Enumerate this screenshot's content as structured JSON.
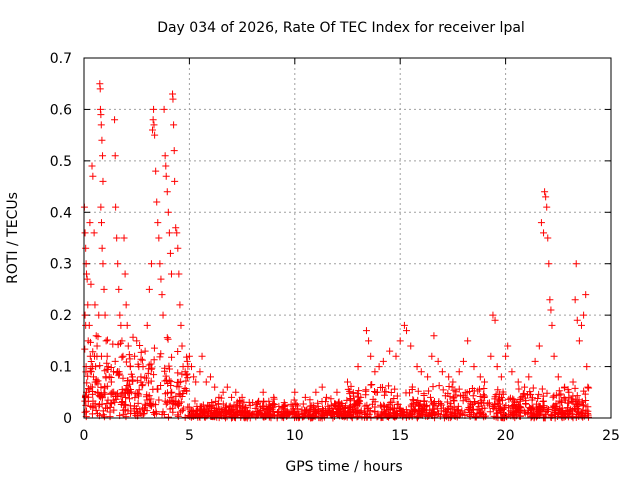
{
  "chart_data": {
    "type": "scatter",
    "title": "Day 034 of 2026, Rate Of TEC Index for receiver lpal",
    "xlabel": "GPS time / hours",
    "ylabel": "ROTI / TECUs",
    "xlim": [
      0,
      25
    ],
    "ylim": [
      0,
      0.7
    ],
    "xticks": [
      0,
      5,
      10,
      15,
      20,
      25
    ],
    "yticks": [
      0,
      0.1,
      0.2,
      0.3,
      0.4,
      0.5,
      0.6,
      0.7
    ],
    "xtick_labels": [
      "0",
      "5",
      "10",
      "15",
      "20",
      "25"
    ],
    "ytick_labels": [
      "0",
      "0.1",
      "0.2",
      "0.3",
      "0.4",
      "0.5",
      "0.6",
      "0.7"
    ],
    "grid": true,
    "marker": "+",
    "color": "#ff0000",
    "series": [
      {
        "name": "ROTI",
        "points": [
          [
            0.02,
            0.41
          ],
          [
            0.05,
            0.36
          ],
          [
            0.08,
            0.33
          ],
          [
            0.1,
            0.3
          ],
          [
            0.12,
            0.28
          ],
          [
            0.15,
            0.27
          ],
          [
            0.05,
            0.2
          ],
          [
            0.08,
            0.18
          ],
          [
            0.1,
            0.1
          ],
          [
            0.12,
            0.05
          ],
          [
            0.18,
            0.22
          ],
          [
            0.25,
            0.18
          ],
          [
            0.3,
            0.12
          ],
          [
            0.35,
            0.09
          ],
          [
            0.4,
            0.06
          ],
          [
            0.45,
            0.08
          ],
          [
            0.5,
            0.12
          ],
          [
            0.55,
            0.1
          ],
          [
            0.6,
            0.07
          ],
          [
            0.65,
            0.05
          ],
          [
            0.2,
            0.15
          ],
          [
            0.28,
            0.38
          ],
          [
            0.33,
            0.26
          ],
          [
            0.38,
            0.49
          ],
          [
            0.42,
            0.47
          ],
          [
            0.48,
            0.36
          ],
          [
            0.52,
            0.22
          ],
          [
            0.58,
            0.16
          ],
          [
            0.62,
            0.14
          ],
          [
            0.7,
            0.2
          ],
          [
            0.75,
            0.65
          ],
          [
            0.77,
            0.64
          ],
          [
            0.78,
            0.6
          ],
          [
            0.8,
            0.59
          ],
          [
            0.82,
            0.57
          ],
          [
            0.85,
            0.54
          ],
          [
            0.88,
            0.51
          ],
          [
            0.9,
            0.46
          ],
          [
            0.8,
            0.41
          ],
          [
            0.83,
            0.38
          ],
          [
            0.86,
            0.33
          ],
          [
            0.9,
            0.3
          ],
          [
            0.95,
            0.25
          ],
          [
            1.0,
            0.2
          ],
          [
            1.05,
            0.15
          ],
          [
            1.1,
            0.12
          ],
          [
            1.15,
            0.1
          ],
          [
            1.2,
            0.08
          ],
          [
            1.3,
            0.07
          ],
          [
            1.4,
            0.09
          ],
          [
            1.45,
            0.58
          ],
          [
            1.48,
            0.51
          ],
          [
            1.5,
            0.41
          ],
          [
            1.55,
            0.35
          ],
          [
            1.6,
            0.3
          ],
          [
            1.65,
            0.25
          ],
          [
            1.7,
            0.2
          ],
          [
            1.75,
            0.18
          ],
          [
            1.8,
            0.15
          ],
          [
            1.85,
            0.12
          ],
          [
            1.9,
            0.35
          ],
          [
            1.95,
            0.28
          ],
          [
            2.0,
            0.22
          ],
          [
            2.05,
            0.18
          ],
          [
            2.1,
            0.14
          ],
          [
            2.2,
            0.1
          ],
          [
            2.3,
            0.08
          ],
          [
            2.4,
            0.12
          ],
          [
            2.5,
            0.15
          ],
          [
            2.6,
            0.1
          ],
          [
            2.7,
            0.08
          ],
          [
            2.8,
            0.1
          ],
          [
            2.9,
            0.13
          ],
          [
            3.0,
            0.18
          ],
          [
            3.1,
            0.25
          ],
          [
            3.2,
            0.3
          ],
          [
            3.25,
            0.56
          ],
          [
            3.28,
            0.58
          ],
          [
            3.3,
            0.6
          ],
          [
            3.32,
            0.57
          ],
          [
            3.35,
            0.55
          ],
          [
            3.4,
            0.48
          ],
          [
            3.45,
            0.42
          ],
          [
            3.5,
            0.38
          ],
          [
            3.55,
            0.35
          ],
          [
            3.6,
            0.3
          ],
          [
            3.65,
            0.27
          ],
          [
            3.7,
            0.24
          ],
          [
            3.75,
            0.2
          ],
          [
            3.8,
            0.6
          ],
          [
            3.85,
            0.51
          ],
          [
            3.88,
            0.49
          ],
          [
            3.9,
            0.47
          ],
          [
            3.95,
            0.44
          ],
          [
            4.0,
            0.4
          ],
          [
            4.05,
            0.36
          ],
          [
            4.1,
            0.32
          ],
          [
            4.15,
            0.28
          ],
          [
            4.2,
            0.63
          ],
          [
            4.22,
            0.62
          ],
          [
            4.25,
            0.57
          ],
          [
            4.28,
            0.52
          ],
          [
            4.3,
            0.46
          ],
          [
            4.35,
            0.37
          ],
          [
            4.4,
            0.36
          ],
          [
            4.45,
            0.33
          ],
          [
            4.5,
            0.28
          ],
          [
            4.55,
            0.22
          ],
          [
            4.6,
            0.18
          ],
          [
            4.65,
            0.14
          ],
          [
            4.7,
            0.1
          ],
          [
            4.8,
            0.09
          ],
          [
            4.9,
            0.11
          ],
          [
            5.0,
            0.12
          ],
          [
            5.1,
            0.1
          ],
          [
            5.2,
            0.08
          ],
          [
            5.3,
            0.07
          ],
          [
            5.5,
            0.09
          ],
          [
            5.6,
            0.12
          ],
          [
            5.8,
            0.07
          ],
          [
            6.0,
            0.08
          ],
          [
            6.2,
            0.06
          ],
          [
            6.4,
            0.04
          ],
          [
            6.6,
            0.05
          ],
          [
            6.8,
            0.06
          ],
          [
            7.0,
            0.04
          ],
          [
            7.2,
            0.05
          ],
          [
            7.5,
            0.04
          ],
          [
            8.0,
            0.03
          ],
          [
            8.5,
            0.05
          ],
          [
            9.0,
            0.04
          ],
          [
            9.5,
            0.03
          ],
          [
            10.0,
            0.05
          ],
          [
            10.5,
            0.04
          ],
          [
            11.0,
            0.05
          ],
          [
            11.3,
            0.06
          ],
          [
            11.5,
            0.04
          ],
          [
            12.0,
            0.05
          ],
          [
            12.5,
            0.07
          ],
          [
            13.0,
            0.1
          ],
          [
            13.4,
            0.17
          ],
          [
            13.5,
            0.15
          ],
          [
            13.6,
            0.12
          ],
          [
            13.8,
            0.09
          ],
          [
            14.0,
            0.1
          ],
          [
            14.2,
            0.11
          ],
          [
            14.5,
            0.13
          ],
          [
            14.8,
            0.12
          ],
          [
            15.0,
            0.15
          ],
          [
            15.2,
            0.18
          ],
          [
            15.3,
            0.17
          ],
          [
            15.5,
            0.14
          ],
          [
            15.8,
            0.1
          ],
          [
            16.0,
            0.09
          ],
          [
            16.3,
            0.08
          ],
          [
            16.5,
            0.12
          ],
          [
            16.6,
            0.16
          ],
          [
            16.8,
            0.11
          ],
          [
            17.0,
            0.09
          ],
          [
            17.3,
            0.08
          ],
          [
            17.5,
            0.07
          ],
          [
            17.8,
            0.09
          ],
          [
            18.0,
            0.11
          ],
          [
            18.2,
            0.15
          ],
          [
            18.5,
            0.1
          ],
          [
            18.8,
            0.08
          ],
          [
            19.0,
            0.07
          ],
          [
            19.3,
            0.12
          ],
          [
            19.4,
            0.2
          ],
          [
            19.5,
            0.19
          ],
          [
            19.6,
            0.1
          ],
          [
            19.8,
            0.08
          ],
          [
            20.0,
            0.12
          ],
          [
            20.1,
            0.14
          ],
          [
            20.3,
            0.09
          ],
          [
            20.6,
            0.07
          ],
          [
            20.9,
            0.06
          ],
          [
            21.1,
            0.08
          ],
          [
            21.4,
            0.11
          ],
          [
            21.6,
            0.14
          ],
          [
            21.7,
            0.38
          ],
          [
            21.8,
            0.36
          ],
          [
            21.85,
            0.44
          ],
          [
            21.9,
            0.43
          ],
          [
            21.95,
            0.41
          ],
          [
            22.0,
            0.35
          ],
          [
            22.05,
            0.3
          ],
          [
            22.1,
            0.23
          ],
          [
            22.15,
            0.21
          ],
          [
            22.2,
            0.18
          ],
          [
            22.3,
            0.12
          ],
          [
            22.5,
            0.08
          ],
          [
            22.8,
            0.06
          ],
          [
            23.0,
            0.05
          ],
          [
            23.2,
            0.07
          ],
          [
            23.3,
            0.23
          ],
          [
            23.35,
            0.3
          ],
          [
            23.4,
            0.19
          ],
          [
            23.5,
            0.15
          ],
          [
            23.6,
            0.18
          ],
          [
            23.7,
            0.2
          ],
          [
            23.8,
            0.24
          ],
          [
            23.85,
            0.1
          ],
          [
            23.9,
            0.06
          ]
        ]
      }
    ]
  }
}
